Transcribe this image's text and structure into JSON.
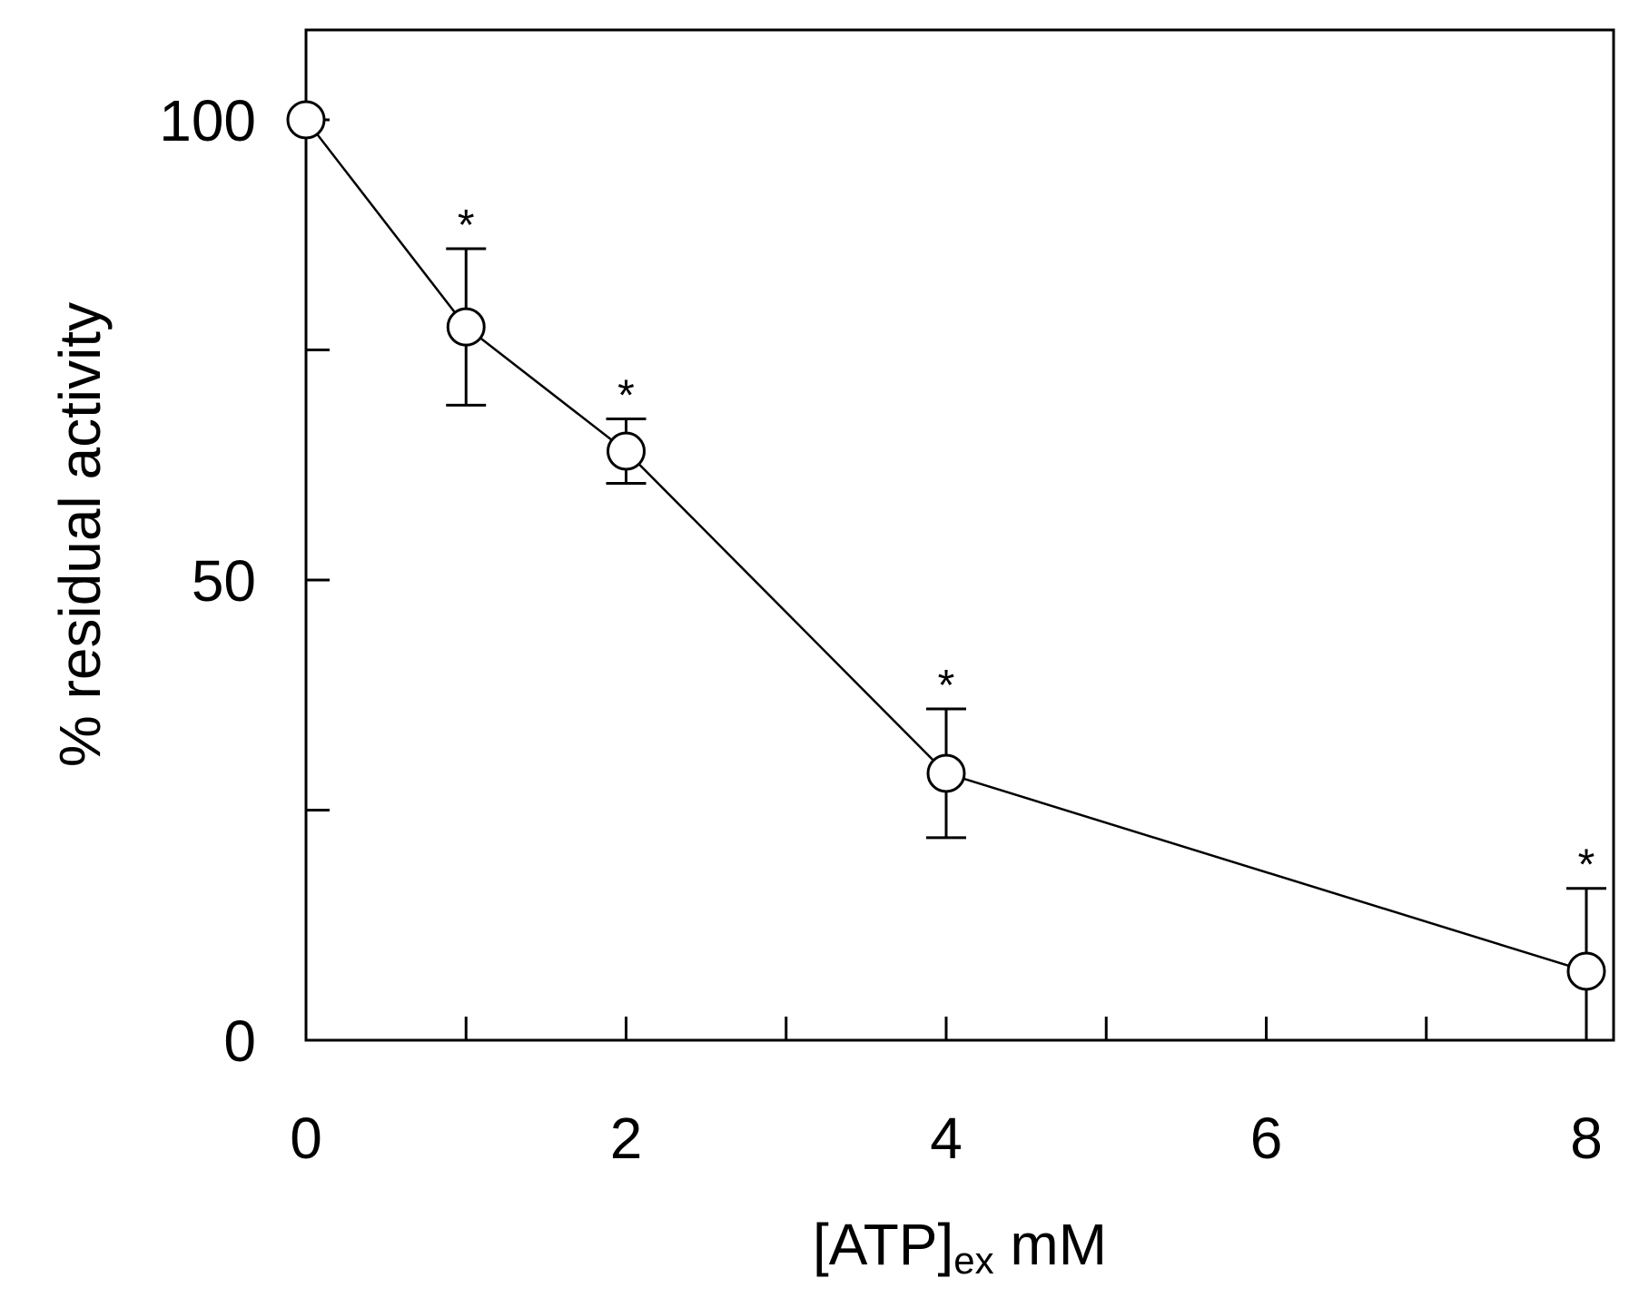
{
  "chart_data": {
    "type": "line",
    "title": "",
    "xlabel": {
      "main": "[ATP]",
      "subscript": "ex",
      "suffix": " mM"
    },
    "ylabel": "% residual activity",
    "xlim": [
      0,
      8
    ],
    "ylim": [
      0,
      110
    ],
    "x_ticks_labeled": [
      0,
      2,
      4,
      6,
      8
    ],
    "x_ticks_minor": [
      1,
      3,
      5,
      7
    ],
    "y_ticks_labeled": [
      0,
      50,
      100
    ],
    "y_ticks_minor": [
      25,
      75
    ],
    "grid": false,
    "legend": "none",
    "series": [
      {
        "x": [
          0,
          1,
          2,
          4,
          8
        ],
        "y": [
          100,
          77.5,
          64,
          29,
          7.5
        ],
        "error": [
          0,
          8.5,
          3.5,
          7,
          9
        ],
        "significance": [
          "",
          "*",
          "*",
          "*",
          "*"
        ],
        "marker": "open-circle",
        "line_color": "#000000",
        "marker_fill": "#ffffff"
      }
    ]
  }
}
